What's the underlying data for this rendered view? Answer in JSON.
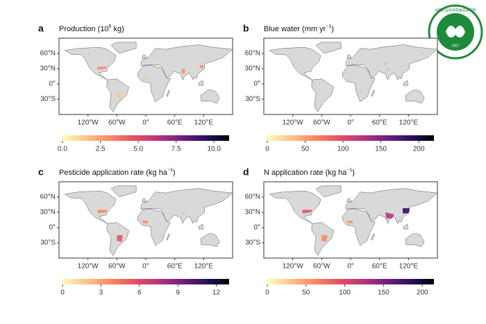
{
  "chart_data": [
    {
      "type": "map",
      "letter": "a",
      "title_parts": [
        "Production (10",
        "6",
        " kg)"
      ],
      "xlim": [
        -180,
        180
      ],
      "ylim": [
        -60,
        90
      ],
      "xticks": [
        {
          "value": -120,
          "label": "120°W"
        },
        {
          "value": -60,
          "label": "60°W"
        },
        {
          "value": 0,
          "label": "0°"
        },
        {
          "value": 60,
          "label": "60°E"
        },
        {
          "value": 120,
          "label": "120°E"
        }
      ],
      "yticks": [
        {
          "value": 60,
          "label": "60°N"
        },
        {
          "value": 30,
          "label": "30°N"
        },
        {
          "value": 0,
          "label": "0°"
        },
        {
          "value": -30,
          "label": "30°S"
        }
      ],
      "colorbar": {
        "lim": [
          0,
          11
        ],
        "ticks": [
          {
            "value": 0,
            "label": "0.0"
          },
          {
            "value": 2.5,
            "label": "2.5"
          },
          {
            "value": 5,
            "label": "5.0"
          },
          {
            "value": 7.5,
            "label": "7.5"
          },
          {
            "value": 10,
            "label": "10.0"
          }
        ]
      }
    },
    {
      "type": "map",
      "letter": "b",
      "title_parts": [
        "Blue water (mm yr",
        "−1",
        ")"
      ],
      "xlim": [
        -180,
        180
      ],
      "ylim": [
        -60,
        90
      ],
      "xticks": [
        {
          "value": -120,
          "label": "120°W"
        },
        {
          "value": -60,
          "label": "60°W"
        },
        {
          "value": 0,
          "label": "0°"
        },
        {
          "value": 60,
          "label": "60°E"
        },
        {
          "value": 120,
          "label": "120°E"
        }
      ],
      "yticks": [
        {
          "value": 60,
          "label": "60°N"
        },
        {
          "value": 30,
          "label": "30°N"
        },
        {
          "value": 0,
          "label": "0°"
        },
        {
          "value": -30,
          "label": "30°S"
        }
      ],
      "colorbar": {
        "lim": [
          0,
          220
        ],
        "ticks": [
          0,
          50,
          100,
          150,
          200
        ]
      }
    },
    {
      "type": "map",
      "letter": "c",
      "title_parts": [
        "Pesticide application rate (kg ha",
        "−1",
        ")"
      ],
      "xlim": [
        -180,
        180
      ],
      "ylim": [
        -60,
        90
      ],
      "xticks": [
        {
          "value": -120,
          "label": "120°W"
        },
        {
          "value": -60,
          "label": "60°W"
        },
        {
          "value": 0,
          "label": "0°"
        },
        {
          "value": 60,
          "label": "60°E"
        },
        {
          "value": 120,
          "label": "120°E"
        }
      ],
      "yticks": [
        {
          "value": 60,
          "label": "60°N"
        },
        {
          "value": 30,
          "label": "30°N"
        },
        {
          "value": 0,
          "label": "0°"
        },
        {
          "value": -30,
          "label": "30°S"
        }
      ],
      "colorbar": {
        "lim": [
          0,
          13
        ],
        "ticks": [
          0,
          3,
          6,
          9,
          12
        ]
      }
    },
    {
      "type": "map",
      "letter": "d",
      "title_parts": [
        "N application rate (kg ha",
        "−1",
        ")"
      ],
      "xlim": [
        -180,
        180
      ],
      "ylim": [
        -60,
        90
      ],
      "xticks": [
        {
          "value": -120,
          "label": "120°W"
        },
        {
          "value": -60,
          "label": "60°W"
        },
        {
          "value": 0,
          "label": "0°"
        },
        {
          "value": 60,
          "label": "60°E"
        },
        {
          "value": 120,
          "label": "120°E"
        }
      ],
      "yticks": [
        {
          "value": 60,
          "label": "60°N"
        },
        {
          "value": 30,
          "label": "30°N"
        },
        {
          "value": 0,
          "label": "0°"
        },
        {
          "value": -30,
          "label": "30°S"
        }
      ],
      "colorbar": {
        "lim": [
          0,
          215
        ],
        "ticks": [
          0,
          50,
          100,
          150,
          200
        ]
      }
    }
  ],
  "colormap": [
    "#fcfdbf",
    "#fec287",
    "#fb8861",
    "#e55064",
    "#b63679",
    "#721f81",
    "#2c115f",
    "#000004"
  ],
  "logo": {
    "name": "中国农业科学院棉花研究所",
    "year": "1957"
  }
}
